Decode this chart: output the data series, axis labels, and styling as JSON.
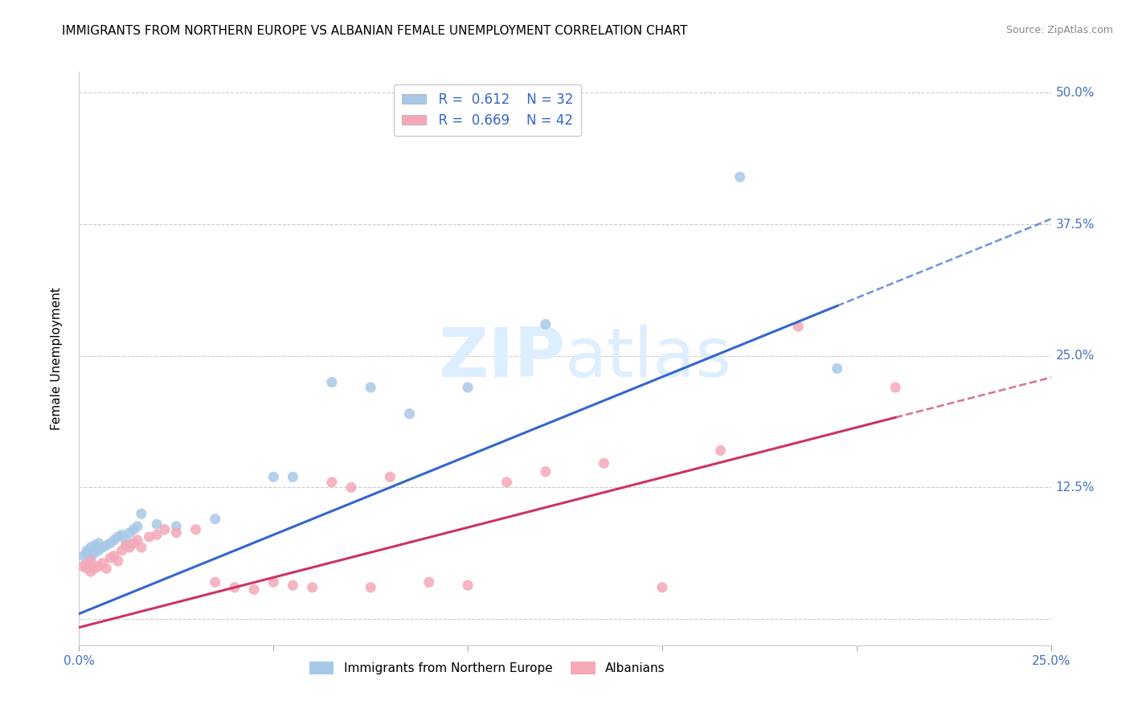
{
  "title": "IMMIGRANTS FROM NORTHERN EUROPE VS ALBANIAN FEMALE UNEMPLOYMENT CORRELATION CHART",
  "source": "Source: ZipAtlas.com",
  "ylabel": "Female Unemployment",
  "xlim": [
    0.0,
    0.25
  ],
  "ylim": [
    -0.025,
    0.52
  ],
  "yticks": [
    0.0,
    0.125,
    0.25,
    0.375,
    0.5
  ],
  "ytick_labels": [
    "",
    "12.5%",
    "25.0%",
    "37.5%",
    "50.0%"
  ],
  "xticks": [
    0.0,
    0.05,
    0.1,
    0.15,
    0.2,
    0.25
  ],
  "xtick_labels": [
    "0.0%",
    "",
    "",
    "",
    "",
    "25.0%"
  ],
  "blue_scatter_x": [
    0.001,
    0.002,
    0.002,
    0.003,
    0.003,
    0.004,
    0.004,
    0.005,
    0.005,
    0.006,
    0.007,
    0.008,
    0.009,
    0.01,
    0.011,
    0.012,
    0.013,
    0.014,
    0.015,
    0.016,
    0.02,
    0.025,
    0.035,
    0.05,
    0.055,
    0.065,
    0.075,
    0.085,
    0.1,
    0.12,
    0.17,
    0.195
  ],
  "blue_scatter_y": [
    0.06,
    0.062,
    0.065,
    0.058,
    0.068,
    0.063,
    0.07,
    0.065,
    0.072,
    0.068,
    0.07,
    0.072,
    0.075,
    0.078,
    0.08,
    0.075,
    0.082,
    0.085,
    0.088,
    0.1,
    0.09,
    0.088,
    0.095,
    0.135,
    0.135,
    0.225,
    0.22,
    0.195,
    0.22,
    0.28,
    0.42,
    0.238
  ],
  "pink_scatter_x": [
    0.001,
    0.002,
    0.002,
    0.003,
    0.003,
    0.004,
    0.005,
    0.006,
    0.007,
    0.008,
    0.009,
    0.01,
    0.011,
    0.012,
    0.013,
    0.014,
    0.015,
    0.016,
    0.018,
    0.02,
    0.022,
    0.025,
    0.03,
    0.035,
    0.04,
    0.045,
    0.05,
    0.055,
    0.06,
    0.065,
    0.07,
    0.075,
    0.08,
    0.09,
    0.1,
    0.11,
    0.12,
    0.135,
    0.15,
    0.165,
    0.185,
    0.21
  ],
  "pink_scatter_y": [
    0.05,
    0.048,
    0.052,
    0.045,
    0.055,
    0.048,
    0.05,
    0.053,
    0.048,
    0.058,
    0.06,
    0.055,
    0.065,
    0.07,
    0.068,
    0.072,
    0.075,
    0.068,
    0.078,
    0.08,
    0.085,
    0.082,
    0.085,
    0.035,
    0.03,
    0.028,
    0.035,
    0.032,
    0.03,
    0.13,
    0.125,
    0.03,
    0.135,
    0.035,
    0.032,
    0.13,
    0.14,
    0.148,
    0.03,
    0.16,
    0.278,
    0.22
  ],
  "blue_line_slope": 1.5,
  "blue_line_intercept": 0.005,
  "blue_line_x_start": 0.0,
  "blue_line_x_solid_end": 0.195,
  "blue_line_x_end": 0.25,
  "pink_line_slope": 0.95,
  "pink_line_intercept": -0.008,
  "pink_line_x_start": 0.0,
  "pink_line_x_solid_end": 0.21,
  "pink_line_x_end": 0.25,
  "R_blue": "0.612",
  "N_blue": "32",
  "R_pink": "0.669",
  "N_pink": "42",
  "blue_scatter_color": "#a8c8e8",
  "pink_scatter_color": "#f4a8b8",
  "blue_line_color": "#3366cc",
  "pink_line_color": "#cc3366",
  "axis_label_color": "#4472C4",
  "watermark_color": "#ddeeff",
  "background_color": "#ffffff",
  "grid_color": "#cccccc",
  "title_fontsize": 11,
  "source_fontsize": 9,
  "legend_fontsize": 12,
  "ylabel_fontsize": 11,
  "tick_fontsize": 11
}
